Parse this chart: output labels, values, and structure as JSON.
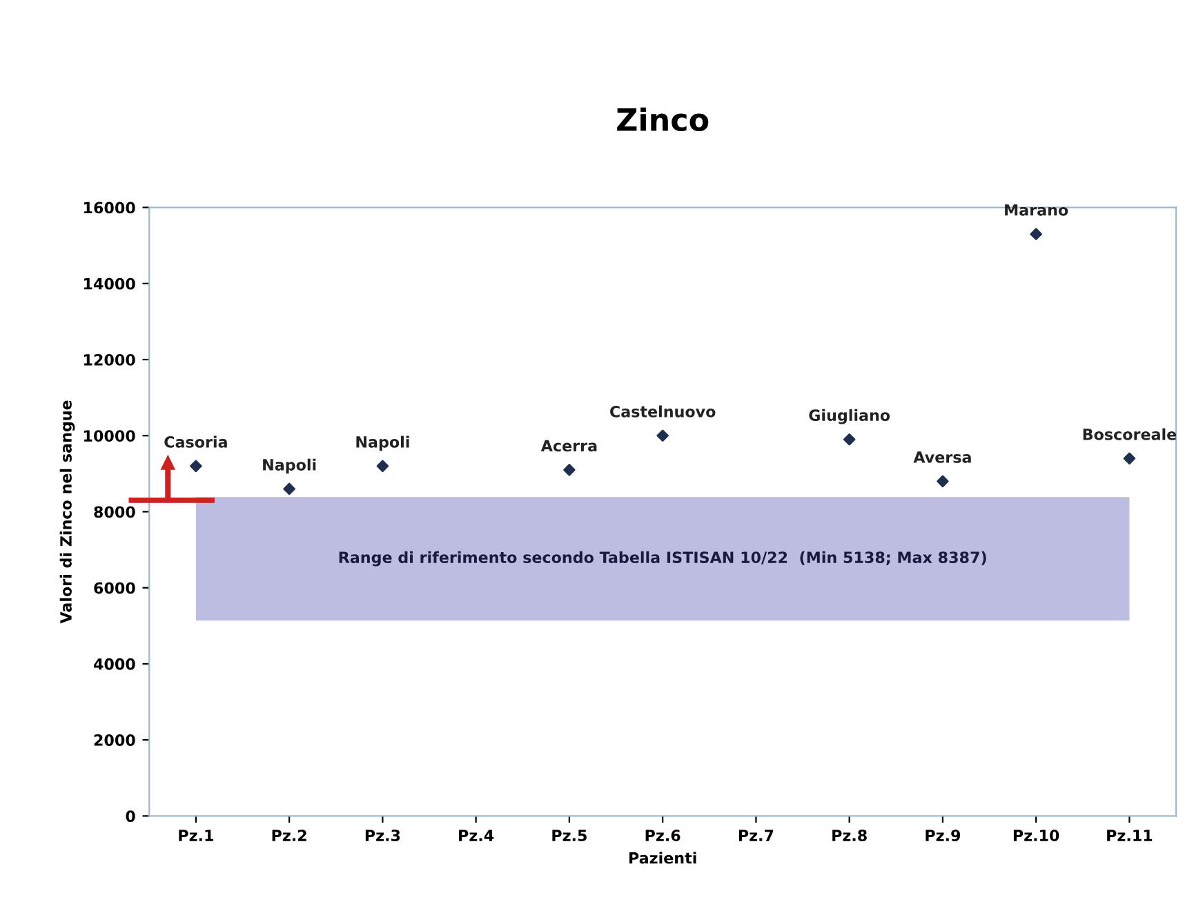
{
  "chart_data": {
    "type": "scatter",
    "title": "Zinco",
    "xlabel": "Pazienti",
    "ylabel": "Valori di Zinco nel sangue",
    "categories": [
      "Pz.1",
      "Pz.2",
      "Pz.3",
      "Pz.4",
      "Pz.5",
      "Pz.6",
      "Pz.7",
      "Pz.8",
      "Pz.9",
      "Pz.10",
      "Pz.11"
    ],
    "series": [
      {
        "color": "#1f2f4f",
        "values": [
          9200,
          8600,
          9200,
          null,
          9100,
          10000,
          null,
          9900,
          8800,
          15300,
          9400
        ]
      }
    ],
    "marker": "diamond",
    "ylim": [
      0,
      16000
    ],
    "yticks": [
      0,
      2000,
      4000,
      6000,
      8000,
      10000,
      12000,
      14000,
      16000
    ],
    "bands": [
      {
        "axis": "y",
        "from": 5138,
        "to": 8387,
        "label": "Range di riferimento secondo Tabella ISTISAN 10/22  (Min 5138; Max 8387)",
        "color": "#bcbde0"
      }
    ],
    "annotations": [
      {
        "text": "Casoria",
        "x": "Pz.1",
        "y": 9200
      },
      {
        "text": "Napoli",
        "x": "Pz.2",
        "y": 8600
      },
      {
        "text": "Napoli",
        "x": "Pz.3",
        "y": 9200
      },
      {
        "text": "Acerra",
        "x": "Pz.5",
        "y": 9100
      },
      {
        "text": "Castelnuovo",
        "x": "Pz.6",
        "y": 10000
      },
      {
        "text": "Giugliano",
        "x": "Pz.8",
        "y": 9900
      },
      {
        "text": "Aversa",
        "x": "Pz.9",
        "y": 8800
      },
      {
        "text": "Marano",
        "x": "Pz.10",
        "y": 15300
      },
      {
        "text": "Boscoreale",
        "x": "Pz.11",
        "y": 9400
      }
    ],
    "grid": false,
    "legend": false
  }
}
